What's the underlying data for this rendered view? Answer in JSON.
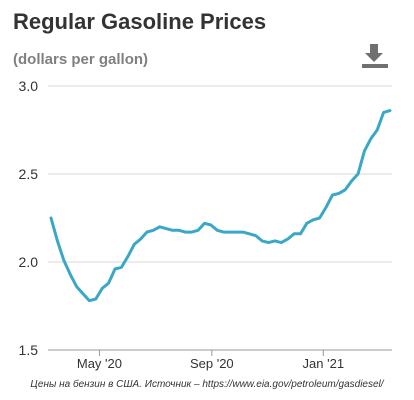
{
  "header": {
    "title": "Regular Gasoline Prices",
    "subtitle": "(dollars per gallon)",
    "download_icon": "download-icon"
  },
  "footer": {
    "source": "Цены на бензин в США. Источник – https://www.eia.gov/petroleum/gasdiesel/"
  },
  "colors": {
    "line": "#3aa7c7",
    "grid": "#d9d9d9",
    "text": "#333333",
    "muted": "#808080"
  },
  "chart_data": {
    "type": "line",
    "title": "Regular Gasoline Prices",
    "subtitle": "(dollars per gallon)",
    "xlabel": "",
    "ylabel": "",
    "ylim": [
      1.5,
      3.0
    ],
    "yticks": [
      1.5,
      2.0,
      2.5,
      3.0
    ],
    "ytick_labels": [
      "1.5",
      "2.0",
      "2.5",
      "3.0"
    ],
    "xticks": [
      {
        "date": "2020-05-01",
        "label": "May '20"
      },
      {
        "date": "2020-09-01",
        "label": "Sep '20"
      },
      {
        "date": "2021-01-01",
        "label": "Jan '21"
      }
    ],
    "grid": true,
    "legend": "none",
    "series": [
      {
        "x": [
          "2020-03-09",
          "2020-03-16",
          "2020-03-23",
          "2020-03-30",
          "2020-04-06",
          "2020-04-13",
          "2020-04-20",
          "2020-04-27",
          "2020-05-04",
          "2020-05-11",
          "2020-05-18",
          "2020-05-25",
          "2020-06-01",
          "2020-06-08",
          "2020-06-15",
          "2020-06-22",
          "2020-06-29",
          "2020-07-06",
          "2020-07-13",
          "2020-07-20",
          "2020-07-27",
          "2020-08-03",
          "2020-08-10",
          "2020-08-17",
          "2020-08-24",
          "2020-08-31",
          "2020-09-07",
          "2020-09-14",
          "2020-09-21",
          "2020-09-28",
          "2020-10-05",
          "2020-10-12",
          "2020-10-19",
          "2020-10-26",
          "2020-11-02",
          "2020-11-09",
          "2020-11-16",
          "2020-11-23",
          "2020-11-30",
          "2020-12-07",
          "2020-12-14",
          "2020-12-21",
          "2020-12-28",
          "2021-01-04",
          "2021-01-11",
          "2021-01-18",
          "2021-01-25",
          "2021-02-01",
          "2021-02-08",
          "2021-02-15",
          "2021-02-22",
          "2021-03-01",
          "2021-03-08",
          "2021-03-15"
        ],
        "values": [
          2.25,
          2.12,
          2.01,
          1.93,
          1.86,
          1.82,
          1.78,
          1.79,
          1.85,
          1.88,
          1.96,
          1.97,
          2.03,
          2.1,
          2.13,
          2.17,
          2.18,
          2.2,
          2.19,
          2.18,
          2.18,
          2.17,
          2.17,
          2.18,
          2.22,
          2.21,
          2.18,
          2.17,
          2.17,
          2.17,
          2.17,
          2.16,
          2.15,
          2.12,
          2.11,
          2.12,
          2.11,
          2.13,
          2.16,
          2.16,
          2.22,
          2.24,
          2.25,
          2.31,
          2.38,
          2.39,
          2.41,
          2.46,
          2.5,
          2.63,
          2.7,
          2.75,
          2.85,
          2.86
        ]
      }
    ]
  }
}
